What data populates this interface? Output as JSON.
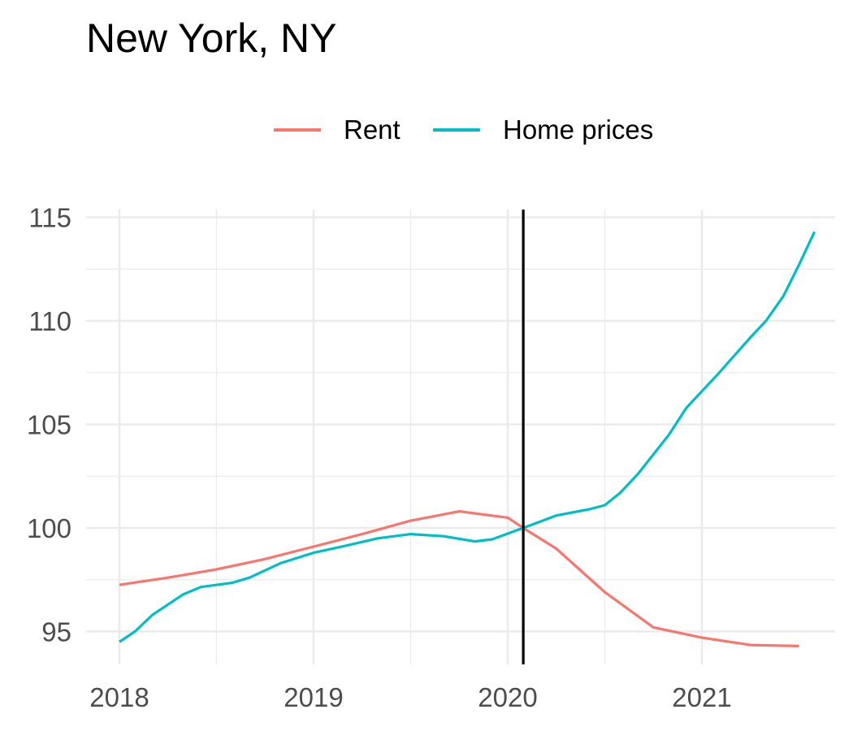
{
  "chart_data": {
    "type": "line",
    "title": "New York, NY",
    "xlabel": "",
    "ylabel": "",
    "xlim": [
      2018.0,
      2021.55
    ],
    "ylim": [
      93.5,
      115.5
    ],
    "x_ticks": [
      2018,
      2019,
      2020,
      2021
    ],
    "y_ticks": [
      95,
      100,
      105,
      110,
      115
    ],
    "grid": true,
    "legend_position": "top",
    "vertical_line": {
      "x": 2020.08,
      "color": "#000000"
    },
    "series": [
      {
        "name": "Rent",
        "color": "#F8766D",
        "points": [
          [
            2018.0,
            97.25
          ],
          [
            2018.25,
            97.6
          ],
          [
            2018.5,
            98.0
          ],
          [
            2018.75,
            98.5
          ],
          [
            2019.0,
            99.1
          ],
          [
            2019.25,
            99.7
          ],
          [
            2019.5,
            100.35
          ],
          [
            2019.75,
            100.8
          ],
          [
            2020.0,
            100.5
          ],
          [
            2020.08,
            100.0
          ],
          [
            2020.25,
            99.0
          ],
          [
            2020.5,
            96.9
          ],
          [
            2020.75,
            95.2
          ],
          [
            2021.0,
            94.7
          ],
          [
            2021.25,
            94.35
          ],
          [
            2021.5,
            94.3
          ]
        ]
      },
      {
        "name": "Home prices",
        "color": "#00BFC4",
        "points": [
          [
            2018.0,
            94.5
          ],
          [
            2018.08,
            95.0
          ],
          [
            2018.17,
            95.8
          ],
          [
            2018.33,
            96.8
          ],
          [
            2018.42,
            97.15
          ],
          [
            2018.58,
            97.35
          ],
          [
            2018.67,
            97.6
          ],
          [
            2018.83,
            98.3
          ],
          [
            2019.0,
            98.8
          ],
          [
            2019.17,
            99.15
          ],
          [
            2019.33,
            99.5
          ],
          [
            2019.5,
            99.7
          ],
          [
            2019.67,
            99.6
          ],
          [
            2019.83,
            99.35
          ],
          [
            2019.92,
            99.45
          ],
          [
            2020.08,
            100.0
          ],
          [
            2020.25,
            100.6
          ],
          [
            2020.42,
            100.9
          ],
          [
            2020.5,
            101.1
          ],
          [
            2020.58,
            101.7
          ],
          [
            2020.67,
            102.6
          ],
          [
            2020.83,
            104.5
          ],
          [
            2020.92,
            105.8
          ],
          [
            2021.08,
            107.4
          ],
          [
            2021.25,
            109.2
          ],
          [
            2021.33,
            110.0
          ],
          [
            2021.42,
            111.2
          ],
          [
            2021.5,
            112.7
          ],
          [
            2021.58,
            114.3
          ]
        ]
      }
    ]
  }
}
